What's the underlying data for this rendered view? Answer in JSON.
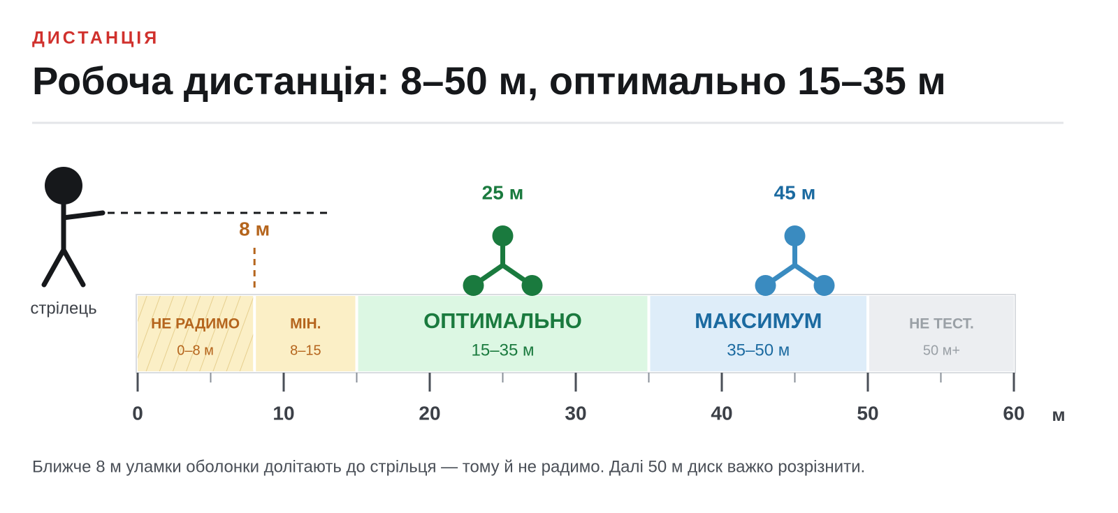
{
  "kicker": "ДИСТАНЦІЯ",
  "title": "Робоча дистанція: 8–50 м, оптимально 15–35 м",
  "shooter_label": "стрілець",
  "scale": {
    "xlim": [
      0,
      60
    ],
    "xticks": [
      0,
      10,
      20,
      30,
      40,
      50,
      60
    ],
    "minor_ticks": [
      5,
      15,
      25,
      35,
      45,
      55
    ],
    "unit": "м"
  },
  "zones": [
    {
      "name": "НЕ РАДИМО",
      "range": "0–8 м",
      "start": 0,
      "end": 8,
      "fill": "#fbefc6",
      "color": "#b5651d",
      "hatched": true
    },
    {
      "name": "МІН.",
      "range": "8–15",
      "start": 8,
      "end": 15,
      "fill": "#fbefc6",
      "color": "#b5651d"
    },
    {
      "name": "ОПТИМАЛЬНО",
      "range": "15–35 м",
      "start": 15,
      "end": 35,
      "fill": "#dcf7e3",
      "color": "#1a7a3e"
    },
    {
      "name": "МАКСИМУМ",
      "range": "35–50 м",
      "start": 35,
      "end": 50,
      "fill": "#deedf9",
      "color": "#1b6aa0"
    },
    {
      "name": "НЕ ТЕСТ.",
      "range": "50 м+",
      "start": 50,
      "end": 60,
      "fill": "#eceef1",
      "color": "#9aa0a6"
    }
  ],
  "min_marker": {
    "label": "8 м",
    "value": 8,
    "color": "#b5651d"
  },
  "drones": [
    {
      "label": "25 м",
      "value": 25,
      "color": "#1a7a3e"
    },
    {
      "label": "45 м",
      "value": 45,
      "color": "#3a8bc0",
      "label_color": "#1b6aa0"
    }
  ],
  "footnote": "Ближче 8 м уламки оболонки долітають до стрільця — тому й не радимо. Далі 50 м диск важко розрізнити."
}
